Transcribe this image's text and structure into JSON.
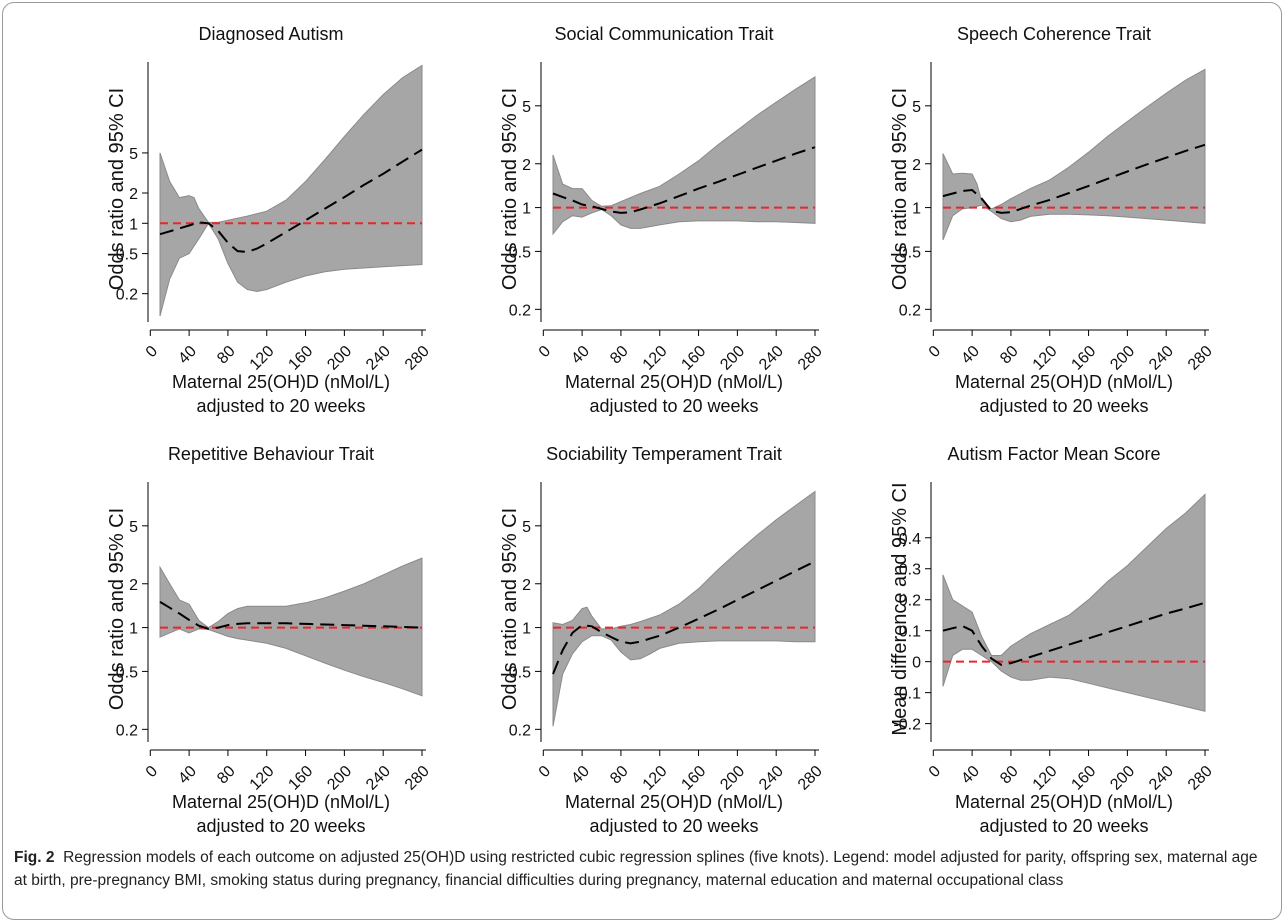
{
  "caption": {
    "label": "Fig. 2",
    "text": "Regression models of each outcome on adjusted 25(OH)D using restricted cubic regression splines (five knots). Legend: model adjusted for parity, offspring sex, maternal age at birth, pre-pregnancy BMI, smoking status during pregnancy, financial difficulties during pregnancy, maternal education and maternal occupational class"
  },
  "colors": {
    "ci_band": "#a6a6a6",
    "ci_edge": "#8a8a8a",
    "estimate": "#000000",
    "reference": "#e8262b"
  },
  "chart_data": [
    {
      "type": "line",
      "title": "Diagnosed Autism",
      "ylabel": "Odds ratio and 95% CI",
      "xlabel_line1": "Maternal 25(OH)D (nMol/L)",
      "xlabel_line2": "adjusted to 20 weeks",
      "y_scale": "log",
      "xlim": [
        10,
        280
      ],
      "ylim": [
        0.12,
        40
      ],
      "x_ticks": [
        0,
        40,
        80,
        120,
        160,
        200,
        240,
        280
      ],
      "y_ticks": [
        0.2,
        0.5,
        1,
        2,
        5
      ],
      "y_tick_labels": [
        "0.2",
        "0.5",
        "1",
        "2",
        "5"
      ],
      "reference_line": 1,
      "series": [
        {
          "role": "estimate",
          "x": [
            10,
            25,
            40,
            50,
            60,
            70,
            80,
            90,
            100,
            110,
            120,
            140,
            160,
            180,
            200,
            220,
            240,
            260,
            280
          ],
          "y": [
            0.78,
            0.86,
            0.95,
            1.02,
            1.0,
            0.84,
            0.64,
            0.53,
            0.52,
            0.56,
            0.63,
            0.82,
            1.07,
            1.4,
            1.82,
            2.4,
            3.1,
            4.1,
            5.4
          ]
        },
        {
          "role": "ci_upper",
          "x": [
            10,
            20,
            30,
            40,
            45,
            50,
            60,
            70,
            80,
            100,
            120,
            140,
            160,
            180,
            200,
            220,
            240,
            260,
            280
          ],
          "y": [
            5.0,
            2.6,
            1.8,
            1.88,
            1.8,
            1.4,
            1.02,
            1.02,
            1.07,
            1.18,
            1.32,
            1.7,
            2.6,
            4.3,
            7.3,
            12.0,
            19.0,
            28.0,
            37.0
          ]
        },
        {
          "role": "ci_lower",
          "x": [
            10,
            20,
            30,
            40,
            50,
            60,
            70,
            80,
            90,
            100,
            110,
            120,
            140,
            160,
            180,
            200,
            220,
            240,
            260,
            280
          ],
          "y": [
            0.12,
            0.28,
            0.45,
            0.5,
            0.7,
            1.0,
            0.7,
            0.4,
            0.26,
            0.22,
            0.21,
            0.22,
            0.26,
            0.3,
            0.33,
            0.35,
            0.36,
            0.37,
            0.38,
            0.39
          ]
        }
      ]
    },
    {
      "type": "line",
      "title": "Social Communication Trait",
      "ylabel": "Odds ratio and 95% CI",
      "xlabel_line1": "Maternal 25(OH)D (nMol/L)",
      "xlabel_line2": "adjusted to 20 weeks",
      "y_scale": "log",
      "xlim": [
        10,
        280
      ],
      "ylim": [
        0.18,
        10
      ],
      "x_ticks": [
        0,
        40,
        80,
        120,
        160,
        200,
        240,
        280
      ],
      "y_ticks": [
        0.2,
        0.5,
        1,
        2,
        5
      ],
      "y_tick_labels": [
        "0.2",
        "0.5",
        "1",
        "2",
        "5"
      ],
      "reference_line": 1,
      "series": [
        {
          "role": "estimate",
          "x": [
            10,
            20,
            30,
            40,
            50,
            60,
            70,
            80,
            90,
            100,
            120,
            140,
            160,
            180,
            200,
            220,
            240,
            260,
            280
          ],
          "y": [
            1.25,
            1.18,
            1.12,
            1.05,
            1.02,
            0.98,
            0.94,
            0.92,
            0.93,
            0.97,
            1.07,
            1.2,
            1.35,
            1.5,
            1.68,
            1.88,
            2.1,
            2.35,
            2.6
          ]
        },
        {
          "role": "ci_upper",
          "x": [
            10,
            20,
            30,
            40,
            50,
            60,
            70,
            80,
            100,
            120,
            140,
            160,
            180,
            200,
            220,
            240,
            260,
            280
          ],
          "y": [
            2.3,
            1.45,
            1.35,
            1.35,
            1.12,
            1.02,
            1.03,
            1.1,
            1.25,
            1.4,
            1.7,
            2.1,
            2.7,
            3.4,
            4.3,
            5.3,
            6.5,
            7.9
          ]
        },
        {
          "role": "ci_lower",
          "x": [
            10,
            20,
            30,
            40,
            50,
            60,
            70,
            80,
            90,
            100,
            120,
            140,
            160,
            180,
            200,
            220,
            240,
            260,
            280
          ],
          "y": [
            0.66,
            0.8,
            0.88,
            0.86,
            0.92,
            0.97,
            0.88,
            0.76,
            0.72,
            0.72,
            0.76,
            0.8,
            0.81,
            0.81,
            0.81,
            0.8,
            0.8,
            0.79,
            0.78
          ]
        }
      ]
    },
    {
      "type": "line",
      "title": "Speech Coherence Trait",
      "ylabel": "Odds ratio and 95% CI",
      "xlabel_line1": "Maternal 25(OH)D (nMol/L)",
      "xlabel_line2": "adjusted to 20 weeks",
      "y_scale": "log",
      "xlim": [
        10,
        280
      ],
      "ylim": [
        0.18,
        10
      ],
      "x_ticks": [
        0,
        40,
        80,
        120,
        160,
        200,
        240,
        280
      ],
      "y_ticks": [
        0.2,
        0.5,
        1,
        2,
        5
      ],
      "y_tick_labels": [
        "0.2",
        "0.5",
        "1",
        "2",
        "5"
      ],
      "reference_line": 1,
      "series": [
        {
          "role": "estimate",
          "x": [
            10,
            20,
            30,
            40,
            50,
            60,
            70,
            80,
            90,
            100,
            120,
            140,
            160,
            180,
            200,
            220,
            240,
            260,
            280
          ],
          "y": [
            1.2,
            1.25,
            1.3,
            1.32,
            1.15,
            0.95,
            0.92,
            0.93,
            0.98,
            1.03,
            1.13,
            1.26,
            1.41,
            1.58,
            1.77,
            1.98,
            2.2,
            2.45,
            2.7
          ]
        },
        {
          "role": "ci_upper",
          "x": [
            10,
            20,
            30,
            40,
            45,
            50,
            60,
            70,
            80,
            100,
            120,
            140,
            160,
            180,
            200,
            220,
            240,
            260,
            280
          ],
          "y": [
            2.35,
            1.7,
            1.72,
            1.7,
            1.45,
            1.1,
            0.98,
            1.05,
            1.15,
            1.35,
            1.55,
            1.9,
            2.4,
            3.1,
            3.9,
            4.9,
            6.1,
            7.5,
            8.9
          ]
        },
        {
          "role": "ci_lower",
          "x": [
            10,
            20,
            30,
            40,
            50,
            60,
            70,
            80,
            90,
            100,
            120,
            140,
            160,
            180,
            200,
            220,
            240,
            260,
            280
          ],
          "y": [
            0.6,
            0.88,
            0.98,
            1.0,
            1.04,
            0.94,
            0.84,
            0.8,
            0.82,
            0.87,
            0.9,
            0.9,
            0.89,
            0.88,
            0.86,
            0.84,
            0.82,
            0.8,
            0.78
          ]
        }
      ]
    },
    {
      "type": "line",
      "title": "Repetitive Behaviour Trait",
      "ylabel": "Odds ratio and 95% CI",
      "xlabel_line1": "Maternal 25(OH)D (nMol/L)",
      "xlabel_line2": "adjusted to 20 weeks",
      "y_scale": "log",
      "xlim": [
        10,
        280
      ],
      "ylim": [
        0.18,
        10
      ],
      "x_ticks": [
        0,
        40,
        80,
        120,
        160,
        200,
        240,
        280
      ],
      "y_ticks": [
        0.2,
        0.5,
        1,
        2,
        5
      ],
      "y_tick_labels": [
        "0.2",
        "0.5",
        "1",
        "2",
        "5"
      ],
      "reference_line": 1,
      "series": [
        {
          "role": "estimate",
          "x": [
            10,
            20,
            30,
            40,
            50,
            60,
            70,
            80,
            90,
            100,
            120,
            140,
            160,
            180,
            200,
            220,
            240,
            260,
            280
          ],
          "y": [
            1.5,
            1.37,
            1.25,
            1.13,
            1.03,
            0.98,
            1.0,
            1.04,
            1.06,
            1.07,
            1.07,
            1.07,
            1.06,
            1.05,
            1.04,
            1.03,
            1.02,
            1.01,
            1.0
          ]
        },
        {
          "role": "ci_upper",
          "x": [
            10,
            20,
            30,
            40,
            50,
            60,
            70,
            80,
            90,
            100,
            120,
            140,
            160,
            180,
            200,
            220,
            240,
            260,
            280
          ],
          "y": [
            2.6,
            2.0,
            1.55,
            1.45,
            1.12,
            1.0,
            1.1,
            1.25,
            1.35,
            1.4,
            1.4,
            1.4,
            1.48,
            1.6,
            1.78,
            2.0,
            2.3,
            2.65,
            3.0
          ]
        },
        {
          "role": "ci_lower",
          "x": [
            10,
            20,
            30,
            40,
            50,
            60,
            70,
            80,
            90,
            100,
            120,
            140,
            160,
            180,
            200,
            220,
            240,
            260,
            280
          ],
          "y": [
            0.86,
            0.92,
            0.98,
            0.92,
            0.98,
            0.97,
            0.92,
            0.87,
            0.84,
            0.82,
            0.78,
            0.72,
            0.64,
            0.57,
            0.51,
            0.46,
            0.42,
            0.38,
            0.34
          ]
        }
      ]
    },
    {
      "type": "line",
      "title": "Sociability Temperament Trait",
      "ylabel": "Odds ratio and 95% CI",
      "xlabel_line1": "Maternal 25(OH)D (nMol/L)",
      "xlabel_line2": "adjusted to 20 weeks",
      "y_scale": "log",
      "xlim": [
        10,
        280
      ],
      "ylim": [
        0.18,
        10
      ],
      "x_ticks": [
        0,
        40,
        80,
        120,
        160,
        200,
        240,
        280
      ],
      "y_ticks": [
        0.2,
        0.5,
        1,
        2,
        5
      ],
      "y_tick_labels": [
        "0.2",
        "0.5",
        "1",
        "2",
        "5"
      ],
      "reference_line": 1,
      "series": [
        {
          "role": "estimate",
          "x": [
            10,
            20,
            30,
            40,
            50,
            60,
            70,
            80,
            90,
            100,
            110,
            120,
            140,
            160,
            180,
            200,
            220,
            240,
            260,
            280
          ],
          "y": [
            0.48,
            0.7,
            0.92,
            1.04,
            1.02,
            0.93,
            0.86,
            0.8,
            0.78,
            0.8,
            0.84,
            0.88,
            1.0,
            1.15,
            1.33,
            1.55,
            1.8,
            2.1,
            2.45,
            2.85
          ]
        },
        {
          "role": "ci_upper",
          "x": [
            10,
            20,
            30,
            40,
            45,
            50,
            60,
            70,
            80,
            90,
            100,
            120,
            140,
            160,
            180,
            200,
            220,
            240,
            260,
            280
          ],
          "y": [
            1.08,
            1.05,
            1.12,
            1.35,
            1.38,
            1.2,
            0.98,
            0.98,
            1.02,
            1.05,
            1.1,
            1.22,
            1.45,
            1.85,
            2.5,
            3.3,
            4.3,
            5.5,
            6.9,
            8.6
          ]
        },
        {
          "role": "ci_lower",
          "x": [
            10,
            20,
            30,
            40,
            50,
            60,
            70,
            80,
            90,
            100,
            110,
            120,
            140,
            160,
            180,
            200,
            220,
            240,
            260,
            280
          ],
          "y": [
            0.21,
            0.48,
            0.66,
            0.8,
            0.88,
            0.88,
            0.82,
            0.68,
            0.6,
            0.61,
            0.66,
            0.72,
            0.78,
            0.8,
            0.81,
            0.81,
            0.81,
            0.81,
            0.8,
            0.8
          ]
        }
      ]
    },
    {
      "type": "line",
      "title": "Autism Factor Mean Score",
      "ylabel": "Mean difference and 95% CI",
      "xlabel_line1": "Maternal 25(OH)D (nMol/L)",
      "xlabel_line2": "adjusted to 20 weeks",
      "y_scale": "linear",
      "xlim": [
        10,
        280
      ],
      "ylim": [
        -0.24,
        0.58
      ],
      "x_ticks": [
        0,
        40,
        80,
        120,
        160,
        200,
        240,
        280
      ],
      "y_ticks": [
        -0.2,
        -0.1,
        0,
        0.1,
        0.2,
        0.3,
        0.4
      ],
      "y_tick_labels": [
        "-0.2",
        "-0.1",
        "0",
        "0.1",
        "0.2",
        "0.3",
        "0.4"
      ],
      "reference_line": 0,
      "series": [
        {
          "role": "estimate",
          "x": [
            10,
            20,
            30,
            40,
            50,
            60,
            70,
            80,
            90,
            100,
            120,
            140,
            160,
            180,
            200,
            220,
            240,
            260,
            280
          ],
          "y": [
            0.1,
            0.108,
            0.115,
            0.1,
            0.05,
            0.01,
            -0.01,
            -0.005,
            0.005,
            0.015,
            0.035,
            0.055,
            0.075,
            0.095,
            0.115,
            0.135,
            0.155,
            0.172,
            0.19
          ]
        },
        {
          "role": "ci_upper",
          "x": [
            10,
            20,
            30,
            40,
            45,
            50,
            60,
            70,
            80,
            100,
            120,
            140,
            160,
            180,
            200,
            220,
            240,
            260,
            280
          ],
          "y": [
            0.28,
            0.2,
            0.18,
            0.16,
            0.12,
            0.08,
            0.02,
            0.02,
            0.05,
            0.09,
            0.12,
            0.15,
            0.2,
            0.26,
            0.31,
            0.37,
            0.43,
            0.48,
            0.54
          ]
        },
        {
          "role": "ci_lower",
          "x": [
            10,
            20,
            30,
            40,
            50,
            60,
            70,
            80,
            90,
            100,
            120,
            140,
            160,
            180,
            200,
            220,
            240,
            260,
            280
          ],
          "y": [
            -0.08,
            0.02,
            0.04,
            0.04,
            0.02,
            0.0,
            -0.03,
            -0.05,
            -0.06,
            -0.06,
            -0.05,
            -0.055,
            -0.07,
            -0.085,
            -0.1,
            -0.115,
            -0.13,
            -0.145,
            -0.16
          ]
        }
      ]
    }
  ]
}
